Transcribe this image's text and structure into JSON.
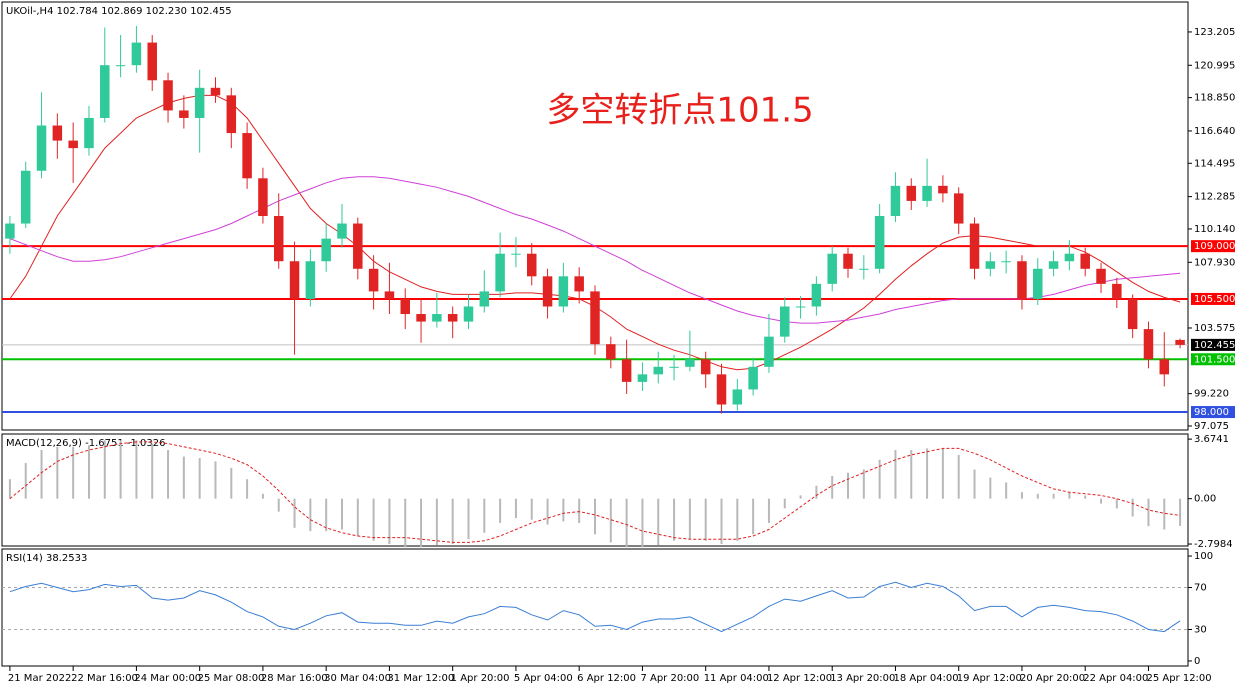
{
  "chart_data": [
    {
      "type": "candlestick",
      "title": "UKOil-,H4 102.784 102.869 102.230 102.455",
      "annotation": "多空转折点101.5",
      "categories": [
        "21 Mar 2022",
        null,
        null,
        null,
        "22 Mar 16:00",
        null,
        null,
        null,
        "24 Mar 00:00",
        null,
        null,
        null,
        "25 Mar 08:00",
        null,
        null,
        null,
        "28 Mar 16:00",
        null,
        null,
        null,
        "30 Mar 04:00",
        null,
        null,
        null,
        "31 Mar 12:00",
        null,
        null,
        null,
        "1 Apr 20:00",
        null,
        null,
        null,
        "5 Apr 04:00",
        null,
        null,
        null,
        "6 Apr 12:00",
        null,
        null,
        null,
        "7 Apr 20:00",
        null,
        null,
        null,
        "11 Apr 04:00",
        null,
        null,
        null,
        "12 Apr 12:00",
        null,
        null,
        null,
        "13 Apr 20:00",
        null,
        null,
        null,
        "18 Apr 04:00",
        null,
        null,
        null,
        "19 Apr 12:00",
        null,
        null,
        null,
        "20 Apr 20:00",
        null,
        null,
        null,
        "22 Apr 04:00",
        null,
        null,
        null,
        "25 Apr 12:00",
        null,
        null
      ],
      "candles": [
        [
          109.5,
          111,
          108.5,
          110.5
        ],
        [
          110.5,
          114.6,
          110.2,
          114
        ],
        [
          114,
          119.2,
          113.5,
          117
        ],
        [
          117,
          117.8,
          114.8,
          116
        ],
        [
          116,
          117.2,
          113.2,
          115.5
        ],
        [
          115.5,
          118.3,
          115,
          117.5
        ],
        [
          117.5,
          123.5,
          117.2,
          121
        ],
        [
          121,
          123,
          120.2,
          121
        ],
        [
          121,
          123.6,
          120.5,
          122.5
        ],
        [
          122.5,
          123,
          119.3,
          120
        ],
        [
          120,
          120.5,
          117.2,
          118
        ],
        [
          118,
          119,
          116.8,
          117.5
        ],
        [
          117.5,
          120.7,
          115.2,
          119.5
        ],
        [
          119.5,
          120.2,
          118.5,
          119
        ],
        [
          119,
          119.5,
          115.5,
          116.5
        ],
        [
          116.5,
          117.2,
          112.8,
          113.5
        ],
        [
          113.5,
          114.2,
          110.5,
          111
        ],
        [
          111,
          112.5,
          107.5,
          108
        ],
        [
          108,
          109.3,
          101.8,
          105.5
        ],
        [
          105.5,
          108.8,
          105,
          108
        ],
        [
          108,
          110.5,
          107.3,
          109.5
        ],
        [
          109.5,
          111.8,
          108.9,
          110.5
        ],
        [
          110.5,
          110.9,
          106.8,
          107.5
        ],
        [
          107.5,
          108.4,
          104.8,
          106
        ],
        [
          106,
          107.9,
          104.5,
          105.5
        ],
        [
          105.5,
          106.2,
          103.5,
          104.5
        ],
        [
          104.5,
          105.5,
          102.6,
          104
        ],
        [
          104,
          105.9,
          103.6,
          104.5
        ],
        [
          104.5,
          105,
          102.9,
          104
        ],
        [
          104,
          105.8,
          103.5,
          105
        ],
        [
          105,
          107.4,
          104.6,
          106
        ],
        [
          106,
          109.9,
          105.6,
          108.5
        ],
        [
          108.5,
          109.6,
          107.6,
          108.5
        ],
        [
          108.5,
          109.2,
          106.4,
          107
        ],
        [
          107,
          107.5,
          104.2,
          105
        ],
        [
          105,
          107.9,
          104.6,
          107
        ],
        [
          107,
          107.6,
          105.2,
          106
        ],
        [
          106,
          106.4,
          101.8,
          102.5
        ],
        [
          102.5,
          103,
          100.9,
          101.5
        ],
        [
          101.5,
          102.8,
          99.2,
          100
        ],
        [
          100,
          101.3,
          99.4,
          100.5
        ],
        [
          100.5,
          102,
          99.9,
          101
        ],
        [
          101,
          101.8,
          100.1,
          101
        ],
        [
          101,
          103.4,
          100.7,
          101.5
        ],
        [
          101.5,
          102,
          99.6,
          100.5
        ],
        [
          100.5,
          101.2,
          97.9,
          98.5
        ],
        [
          98.5,
          100.2,
          98.1,
          99.5
        ],
        [
          99.5,
          101.6,
          99.1,
          101
        ],
        [
          101,
          104.5,
          100.6,
          103
        ],
        [
          103,
          105.6,
          102.6,
          105
        ],
        [
          105,
          105.7,
          104.2,
          105
        ],
        [
          105,
          107,
          104.4,
          106.5
        ],
        [
          106.5,
          109,
          106,
          108.5
        ],
        [
          108.5,
          108.9,
          106.9,
          107.5
        ],
        [
          107.5,
          108.4,
          106.8,
          107.5
        ],
        [
          107.5,
          111.8,
          107.2,
          111
        ],
        [
          111,
          113.9,
          110.6,
          113
        ],
        [
          113,
          113.5,
          111.4,
          112
        ],
        [
          112,
          114.8,
          111.6,
          113
        ],
        [
          113,
          113.7,
          111.9,
          112.5
        ],
        [
          112.5,
          112.9,
          109.8,
          110.5
        ],
        [
          110.5,
          110.9,
          106.8,
          107.5
        ],
        [
          107.5,
          108.6,
          107,
          108
        ],
        [
          108,
          108.7,
          107.2,
          108
        ],
        [
          108,
          108.4,
          104.8,
          105.5
        ],
        [
          105.5,
          108.2,
          105.1,
          107.5
        ],
        [
          107.5,
          108.7,
          107,
          108
        ],
        [
          108,
          109.4,
          107.4,
          108.5
        ],
        [
          108.5,
          108.9,
          107,
          107.5
        ],
        [
          107.5,
          107.9,
          105.9,
          106.5
        ],
        [
          106.5,
          106.9,
          104.9,
          105.5
        ],
        [
          105.5,
          105.8,
          102.9,
          103.5
        ],
        [
          103.5,
          104,
          100.9,
          101.5
        ],
        [
          101.5,
          103.3,
          99.7,
          100.5
        ],
        [
          102.784,
          102.869,
          102.23,
          102.455
        ]
      ],
      "up_color": "#2fc99a",
      "down_color": "#e02424",
      "lines": [
        {
          "color": "#e02020",
          "values": [
            105.5,
            107,
            109,
            111,
            112.5,
            114,
            115.5,
            116.5,
            117.5,
            118,
            118.5,
            118.8,
            119,
            119,
            118.5,
            117.5,
            116,
            114.5,
            113,
            111.5,
            110.5,
            109.8,
            109,
            108,
            107.3,
            106.8,
            106.3,
            106,
            105.8,
            105.8,
            105.8,
            105.8,
            105.9,
            105.9,
            105.8,
            105.7,
            105.5,
            105,
            104.3,
            103.5,
            103,
            102.5,
            102.1,
            101.8,
            101.4,
            101,
            100.8,
            100.9,
            101.3,
            101.8,
            102.3,
            102.9,
            103.5,
            104.2,
            104.9,
            105.8,
            106.8,
            107.7,
            108.5,
            109.2,
            109.6,
            109.7,
            109.6,
            109.4,
            109.2,
            109,
            109,
            109,
            108.6,
            108,
            107.3,
            106.6,
            106,
            105.6,
            105.3
          ]
        },
        {
          "color": "#d040d8",
          "values": [
            109.5,
            109.1,
            108.7,
            108.3,
            108,
            108,
            108.1,
            108.3,
            108.6,
            108.9,
            109.2,
            109.5,
            109.8,
            110.1,
            110.5,
            111,
            111.5,
            112,
            112.4,
            112.8,
            113.2,
            113.5,
            113.6,
            113.6,
            113.5,
            113.3,
            113.1,
            112.9,
            112.6,
            112.3,
            111.9,
            111.5,
            111.1,
            110.8,
            110.4,
            110,
            109.5,
            109,
            108.5,
            108,
            107.4,
            106.9,
            106.4,
            105.9,
            105.5,
            105.1,
            104.7,
            104.4,
            104.2,
            104,
            103.9,
            103.9,
            104,
            104.1,
            104.3,
            104.5,
            104.8,
            105,
            105.2,
            105.4,
            105.5,
            105.5,
            105.5,
            105.5,
            105.5,
            105.6,
            105.8,
            106.1,
            106.4,
            106.6,
            106.8,
            106.9,
            107,
            107.1,
            107.2
          ]
        }
      ],
      "levels": [
        {
          "value": 109,
          "label": "109.000",
          "color": "#ff0000"
        },
        {
          "value": 105.5,
          "label": "105.500",
          "color": "#ff0000"
        },
        {
          "value": 101.5,
          "label": "101.500",
          "color": "#00c000"
        },
        {
          "value": 98,
          "label": "98.000",
          "color": "#3050e0"
        }
      ],
      "last_price": 102.455,
      "ylim": [
        96.81,
        125.19
      ],
      "yticks": [
        123.205,
        120.995,
        {
          "value": 118.85,
          "label": "118.850"
        },
        {
          "value": 116.64,
          "label": "116.640"
        },
        114.495,
        112.285,
        {
          "value": 110.14,
          "label": "110.140"
        },
        {
          "value": 107.93,
          "label": "107.930"
        },
        103.575,
        {
          "value": 99.22,
          "label": "99.220"
        },
        97.075
      ]
    },
    {
      "type": "macd",
      "title": "MACD(12,26,9) -1.6751 -1.0326",
      "histogram": [
        1.2,
        2.2,
        3,
        3.2,
        3.2,
        3.3,
        3.6,
        3.6,
        3.6,
        3.4,
        3,
        2.6,
        2.5,
        2.3,
        1.9,
        1.2,
        0.3,
        -0.8,
        -1.8,
        -2,
        -2,
        -1.9,
        -2.3,
        -2.6,
        -2.8,
        -3,
        -3,
        -2.9,
        -2.8,
        -2.5,
        -2.1,
        -1.5,
        -1.2,
        -1.3,
        -1.6,
        -1.4,
        -1.5,
        -2.2,
        -2.7,
        -3,
        -3,
        -2.9,
        -2.6,
        -2.5,
        -2.6,
        -2.8,
        -2.6,
        -2.2,
        -1.5,
        -0.6,
        0.2,
        0.8,
        1.4,
        1.6,
        1.8,
        2.4,
        3,
        3,
        3.1,
        3.1,
        2.7,
        1.8,
        1.3,
        1,
        0.4,
        0.3,
        0.3,
        0.4,
        0.2,
        -0.3,
        -0.6,
        -1.1,
        -1.7,
        -1.9,
        -1.68
      ],
      "signal": [
        0,
        0.8,
        1.6,
        2.3,
        2.7,
        3,
        3.2,
        3.4,
        3.5,
        3.5,
        3.4,
        3.2,
        3,
        2.8,
        2.5,
        2.1,
        1.4,
        0.5,
        -0.5,
        -1.3,
        -1.8,
        -2.1,
        -2.3,
        -2.4,
        -2.4,
        -2.4,
        -2.5,
        -2.6,
        -2.7,
        -2.7,
        -2.6,
        -2.3,
        -1.9,
        -1.5,
        -1.2,
        -0.9,
        -0.8,
        -1,
        -1.3,
        -1.6,
        -2,
        -2.2,
        -2.4,
        -2.5,
        -2.5,
        -2.5,
        -2.5,
        -2.3,
        -1.9,
        -1.2,
        -0.5,
        0.2,
        0.8,
        1.2,
        1.6,
        2,
        2.4,
        2.7,
        2.9,
        3.1,
        3.1,
        2.8,
        2.4,
        1.9,
        1.4,
        1,
        0.6,
        0.4,
        0.3,
        0.2,
        0,
        -0.3,
        -0.7,
        -0.9,
        -1.03
      ],
      "histogram_color": "#b8b8b8",
      "signal_color": "#e02020",
      "ylim": [
        -2.92,
        3.99
      ],
      "yticks": [
        3.6741,
        {
          "value": 0,
          "label": "0.00"
        },
        -2.7984
      ]
    },
    {
      "type": "rsi",
      "title": "RSI(14) 38.2533",
      "values": [
        66,
        71,
        74,
        70,
        66,
        68,
        73,
        71,
        72,
        60,
        58,
        60,
        67,
        63,
        56,
        47,
        42,
        33,
        30,
        36,
        43,
        46,
        37,
        36,
        36,
        34,
        34,
        38,
        36,
        42,
        45,
        52,
        51,
        44,
        39,
        48,
        44,
        33,
        34,
        30,
        37,
        40,
        40,
        42,
        35,
        28,
        35,
        42,
        52,
        59,
        57,
        62,
        67,
        60,
        61,
        71,
        75,
        70,
        74,
        71,
        62,
        48,
        52,
        52,
        42,
        51,
        53,
        51,
        48,
        47,
        44,
        38,
        30,
        28,
        38.25
      ],
      "color": "#3a7fd5",
      "levels": [
        70,
        30
      ],
      "ylim": [
        -4.8,
        106.7
      ],
      "yticks": [
        100,
        70,
        30,
        0
      ]
    }
  ]
}
